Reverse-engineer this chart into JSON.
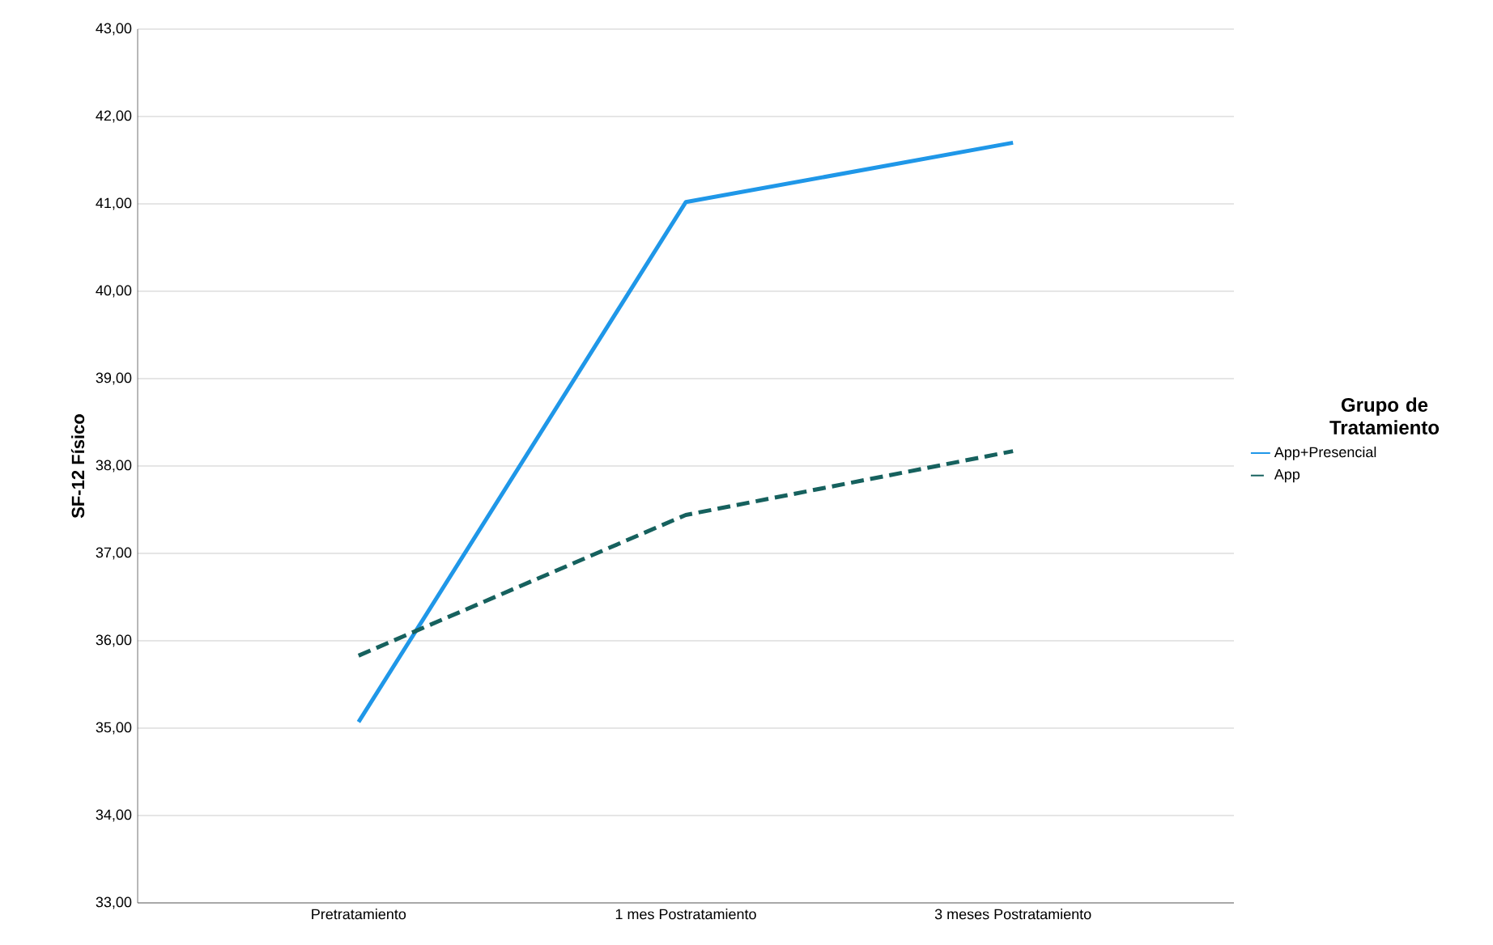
{
  "chart_data": {
    "type": "line",
    "ylabel": "SF-12 Físico",
    "legend_title": "Grupo de Tratamiento",
    "categories": [
      "Pretratamiento",
      "1 mes Postratamiento",
      "3 meses Postratamiento"
    ],
    "series": [
      {
        "name": "App+Presencial",
        "color": "#1f97e8",
        "line_style": "solid",
        "values": [
          35.07,
          41.02,
          41.7
        ]
      },
      {
        "name": "App",
        "color": "#16615e",
        "line_style": "dashed",
        "values": [
          35.83,
          37.44,
          38.17
        ]
      }
    ],
    "ylim": [
      33,
      43
    ],
    "yticks": [
      {
        "value": 33,
        "label": "33,00"
      },
      {
        "value": 34,
        "label": "34,00"
      },
      {
        "value": 35,
        "label": "35,00"
      },
      {
        "value": 36,
        "label": "36,00"
      },
      {
        "value": 37,
        "label": "37,00"
      },
      {
        "value": 38,
        "label": "38,00"
      },
      {
        "value": 39,
        "label": "39,00"
      },
      {
        "value": 40,
        "label": "40,00"
      },
      {
        "value": 41,
        "label": "41,00"
      },
      {
        "value": 42,
        "label": "42,00"
      },
      {
        "value": 43,
        "label": "43,00"
      }
    ],
    "grid": "y",
    "legend": "right",
    "marker": "none"
  }
}
